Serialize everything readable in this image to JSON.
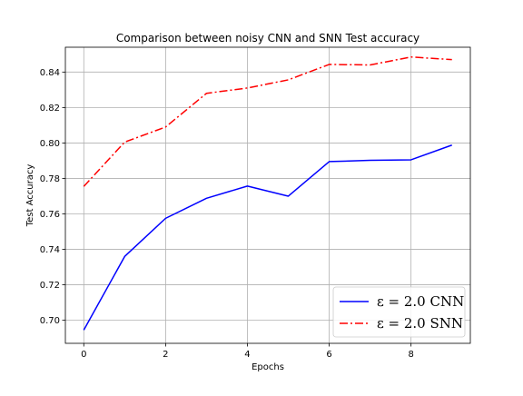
{
  "chart_data": {
    "type": "line",
    "title": "Comparison between noisy CNN and SNN Test accuracy",
    "xlabel": "Epochs",
    "ylabel": "Test Accuracy",
    "xlim": [
      -0.45,
      9.45
    ],
    "ylim": [
      0.687,
      0.854
    ],
    "grid": true,
    "legend_position": "lower right",
    "x": [
      0,
      1,
      2,
      3,
      4,
      5,
      6,
      7,
      8,
      9
    ],
    "x_ticks": [
      0,
      2,
      4,
      6,
      8
    ],
    "x_tick_labels": [
      "0",
      "2",
      "4",
      "6",
      "8"
    ],
    "y_ticks": [
      0.7,
      0.72,
      0.74,
      0.76,
      0.78,
      0.8,
      0.82,
      0.84
    ],
    "y_tick_labels": [
      "0.70",
      "0.72",
      "0.74",
      "0.76",
      "0.78",
      "0.80",
      "0.82",
      "0.84"
    ],
    "series": [
      {
        "name": "ε = 2.0 CNN",
        "color": "#0000ff",
        "linestyle": "solid",
        "values": [
          0.6945,
          0.736,
          0.7575,
          0.7688,
          0.7757,
          0.77,
          0.7895,
          0.7902,
          0.7905,
          0.7988
        ]
      },
      {
        "name": "ε = 2.0 SNN",
        "color": "#ff0000",
        "linestyle": "dashdot",
        "values": [
          0.7755,
          0.8005,
          0.809,
          0.828,
          0.831,
          0.8356,
          0.8443,
          0.844,
          0.8485,
          0.847
        ]
      }
    ]
  }
}
